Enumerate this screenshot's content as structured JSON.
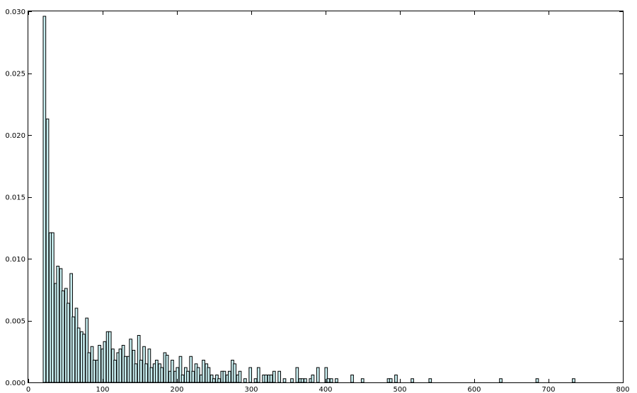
{
  "chart_data": {
    "type": "bar",
    "title": "",
    "xlabel": "",
    "ylabel": "",
    "xlim": [
      0,
      800
    ],
    "ylim": [
      0,
      0.03
    ],
    "grid": false,
    "legend": "none",
    "bar_color": "#c8eef0",
    "edge_color": "#000000",
    "bin_width": 3.5,
    "x_ticks": [
      "0",
      "100",
      "200",
      "300",
      "400",
      "500",
      "600",
      "700",
      "800"
    ],
    "x_tick_values": [
      0,
      100,
      200,
      300,
      400,
      500,
      600,
      700,
      800
    ],
    "y_ticks": [
      "0.000",
      "0.005",
      "0.010",
      "0.015",
      "0.020",
      "0.025",
      "0.030"
    ],
    "y_tick_values": [
      0,
      0.005,
      0.01,
      0.015,
      0.02,
      0.025,
      0.03
    ],
    "bins": [
      {
        "x": 20,
        "y": 0.0296
      },
      {
        "x": 24,
        "y": 0.0213
      },
      {
        "x": 28,
        "y": 0.0121
      },
      {
        "x": 31,
        "y": 0.0121
      },
      {
        "x": 35,
        "y": 0.008
      },
      {
        "x": 38,
        "y": 0.0094
      },
      {
        "x": 42,
        "y": 0.0092
      },
      {
        "x": 45,
        "y": 0.0074
      },
      {
        "x": 49,
        "y": 0.0076
      },
      {
        "x": 52,
        "y": 0.0064
      },
      {
        "x": 56,
        "y": 0.0088
      },
      {
        "x": 59,
        "y": 0.0053
      },
      {
        "x": 63,
        "y": 0.006
      },
      {
        "x": 66,
        "y": 0.0044
      },
      {
        "x": 70,
        "y": 0.0041
      },
      {
        "x": 73,
        "y": 0.0039
      },
      {
        "x": 77,
        "y": 0.0052
      },
      {
        "x": 80,
        "y": 0.0024
      },
      {
        "x": 84,
        "y": 0.0029
      },
      {
        "x": 87,
        "y": 0.0018
      },
      {
        "x": 91,
        "y": 0.0018
      },
      {
        "x": 94,
        "y": 0.003
      },
      {
        "x": 98,
        "y": 0.0027
      },
      {
        "x": 101,
        "y": 0.0033
      },
      {
        "x": 105,
        "y": 0.0041
      },
      {
        "x": 108,
        "y": 0.0041
      },
      {
        "x": 112,
        "y": 0.0027
      },
      {
        "x": 115,
        "y": 0.0018
      },
      {
        "x": 119,
        "y": 0.0024
      },
      {
        "x": 122,
        "y": 0.0027
      },
      {
        "x": 126,
        "y": 0.003
      },
      {
        "x": 129,
        "y": 0.0021
      },
      {
        "x": 133,
        "y": 0.0021
      },
      {
        "x": 136,
        "y": 0.0035
      },
      {
        "x": 140,
        "y": 0.0026
      },
      {
        "x": 143,
        "y": 0.0015
      },
      {
        "x": 147,
        "y": 0.0038
      },
      {
        "x": 150,
        "y": 0.0018
      },
      {
        "x": 154,
        "y": 0.0029
      },
      {
        "x": 157,
        "y": 0.0015
      },
      {
        "x": 161,
        "y": 0.0027
      },
      {
        "x": 164,
        "y": 0.0012
      },
      {
        "x": 168,
        "y": 0.0015
      },
      {
        "x": 171,
        "y": 0.0018
      },
      {
        "x": 175,
        "y": 0.0015
      },
      {
        "x": 178,
        "y": 0.0012
      },
      {
        "x": 182,
        "y": 0.0024
      },
      {
        "x": 185,
        "y": 0.0022
      },
      {
        "x": 189,
        "y": 0.0009
      },
      {
        "x": 192,
        "y": 0.0018
      },
      {
        "x": 196,
        "y": 0.0009
      },
      {
        "x": 199,
        "y": 0.0012
      },
      {
        "x": 203,
        "y": 0.0021
      },
      {
        "x": 206,
        "y": 0.0006
      },
      {
        "x": 210,
        "y": 0.0012
      },
      {
        "x": 213,
        "y": 0.0009
      },
      {
        "x": 217,
        "y": 0.0021
      },
      {
        "x": 220,
        "y": 0.0009
      },
      {
        "x": 224,
        "y": 0.0015
      },
      {
        "x": 227,
        "y": 0.0012
      },
      {
        "x": 231,
        "y": 0.0006
      },
      {
        "x": 234,
        "y": 0.0018
      },
      {
        "x": 238,
        "y": 0.0015
      },
      {
        "x": 241,
        "y": 0.0012
      },
      {
        "x": 245,
        "y": 0.0006
      },
      {
        "x": 248,
        "y": 0.0003
      },
      {
        "x": 252,
        "y": 0.0006
      },
      {
        "x": 255,
        "y": 0.0003
      },
      {
        "x": 259,
        "y": 0.0009
      },
      {
        "x": 262,
        "y": 0.0009
      },
      {
        "x": 266,
        "y": 0.0006
      },
      {
        "x": 269,
        "y": 0.0009
      },
      {
        "x": 273,
        "y": 0.0018
      },
      {
        "x": 276,
        "y": 0.0015
      },
      {
        "x": 280,
        "y": 0.0006
      },
      {
        "x": 283,
        "y": 0.0009
      },
      {
        "x": 290,
        "y": 0.0003
      },
      {
        "x": 297,
        "y": 0.0012
      },
      {
        "x": 304,
        "y": 0.0003
      },
      {
        "x": 308,
        "y": 0.0012
      },
      {
        "x": 315,
        "y": 0.0006
      },
      {
        "x": 318,
        "y": 0.0006
      },
      {
        "x": 322,
        "y": 0.0006
      },
      {
        "x": 325,
        "y": 0.0006
      },
      {
        "x": 329,
        "y": 0.0009
      },
      {
        "x": 336,
        "y": 0.0009
      },
      {
        "x": 343,
        "y": 0.0003
      },
      {
        "x": 353,
        "y": 0.0003
      },
      {
        "x": 360,
        "y": 0.0012
      },
      {
        "x": 364,
        "y": 0.0003
      },
      {
        "x": 367,
        "y": 0.0003
      },
      {
        "x": 371,
        "y": 0.0003
      },
      {
        "x": 378,
        "y": 0.0003
      },
      {
        "x": 381,
        "y": 0.0006
      },
      {
        "x": 388,
        "y": 0.0012
      },
      {
        "x": 399,
        "y": 0.0012
      },
      {
        "x": 402,
        "y": 0.0003
      },
      {
        "x": 406,
        "y": 0.0003
      },
      {
        "x": 413,
        "y": 0.0003
      },
      {
        "x": 434,
        "y": 0.0006
      },
      {
        "x": 448,
        "y": 0.0003
      },
      {
        "x": 483,
        "y": 0.0003
      },
      {
        "x": 486,
        "y": 0.0003
      },
      {
        "x": 493,
        "y": 0.0006
      },
      {
        "x": 515,
        "y": 0.0003
      },
      {
        "x": 539,
        "y": 0.0003
      },
      {
        "x": 634,
        "y": 0.0003
      },
      {
        "x": 683,
        "y": 0.0003
      },
      {
        "x": 732,
        "y": 0.0003
      }
    ]
  }
}
